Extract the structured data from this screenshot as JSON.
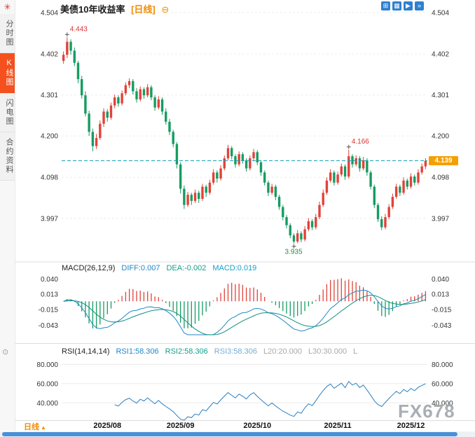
{
  "app": {
    "logo_icon": "✳",
    "indicator_icon": "⊙"
  },
  "sidebar": {
    "tabs": [
      {
        "id": "time-chart",
        "label": "分时图",
        "active": false
      },
      {
        "id": "kline-chart",
        "label": "K线图",
        "active": true
      },
      {
        "id": "lightning-chart",
        "label": "闪电图",
        "active": false
      },
      {
        "id": "contract-info",
        "label": "合约资料",
        "active": false
      }
    ]
  },
  "header": {
    "title": "美债10年收益率",
    "timeframe": "[日线]",
    "zoom_out_icon": "⊖",
    "toolbar_icons": [
      {
        "name": "single-chart-layout-icon",
        "glyph": "⊞"
      },
      {
        "name": "multi-chart-layout-icon",
        "glyph": "▦"
      },
      {
        "name": "play-forward-icon",
        "glyph": "▶"
      },
      {
        "name": "page-forward-icon",
        "glyph": "»"
      }
    ]
  },
  "footer": {
    "timeframe_label": "日线",
    "dropdown_icon": "▲"
  },
  "watermark": "FX678",
  "chart_data": {
    "type": "candlestick",
    "symbol": "美债10年收益率",
    "period": "日线",
    "x_ticks": [
      {
        "label": "2025/08",
        "index": 12
      },
      {
        "label": "2025/09",
        "index": 32
      },
      {
        "label": "2025/10",
        "index": 53
      },
      {
        "label": "2025/11",
        "index": 75
      },
      {
        "label": "2025/12",
        "index": 95
      }
    ],
    "price_pane": {
      "ticks": [
        "4.504",
        "4.402",
        "4.301",
        "4.200",
        "4.098",
        "3.997"
      ],
      "tick_values": [
        4.504,
        4.402,
        4.301,
        4.2,
        4.098,
        3.997
      ],
      "ylim": [
        3.9,
        4.509
      ],
      "last_price": 4.139,
      "last_price_label": "4.139",
      "up_color": "#e0433a",
      "down_color": "#169c62",
      "annotations": [
        {
          "label": "4.443",
          "index": 1,
          "value": 4.443,
          "type": "high",
          "color": "#e03131"
        },
        {
          "label": "4.166",
          "index": 78,
          "value": 4.166,
          "type": "swing-high",
          "color": "#e03131"
        },
        {
          "label": "3.935",
          "index": 63,
          "value": 3.935,
          "type": "low",
          "color": "#2b8a3e"
        }
      ]
    },
    "candles": [
      [
        4.385,
        4.408,
        4.378,
        4.4
      ],
      [
        4.4,
        4.443,
        4.392,
        4.432
      ],
      [
        4.432,
        4.438,
        4.4,
        4.41
      ],
      [
        4.41,
        4.418,
        4.372,
        4.38
      ],
      [
        4.38,
        4.385,
        4.33,
        4.34
      ],
      [
        4.34,
        4.348,
        4.292,
        4.3
      ],
      [
        4.3,
        4.31,
        4.248,
        4.255
      ],
      [
        4.255,
        4.262,
        4.2,
        4.21
      ],
      [
        4.21,
        4.218,
        4.162,
        4.175
      ],
      [
        4.175,
        4.205,
        4.168,
        4.195
      ],
      [
        4.195,
        4.238,
        4.19,
        4.23
      ],
      [
        4.23,
        4.268,
        4.222,
        4.26
      ],
      [
        4.26,
        4.266,
        4.235,
        4.245
      ],
      [
        4.245,
        4.282,
        4.24,
        4.275
      ],
      [
        4.275,
        4.302,
        4.268,
        4.295
      ],
      [
        4.295,
        4.3,
        4.272,
        4.28
      ],
      [
        4.28,
        4.312,
        4.275,
        4.305
      ],
      [
        4.305,
        4.332,
        4.3,
        4.325
      ],
      [
        4.325,
        4.342,
        4.318,
        4.335
      ],
      [
        4.335,
        4.34,
        4.302,
        4.31
      ],
      [
        4.31,
        4.318,
        4.282,
        4.29
      ],
      [
        4.29,
        4.322,
        4.285,
        4.315
      ],
      [
        4.315,
        4.32,
        4.292,
        4.3
      ],
      [
        4.3,
        4.328,
        4.295,
        4.32
      ],
      [
        4.32,
        4.325,
        4.288,
        4.295
      ],
      [
        4.295,
        4.3,
        4.262,
        4.27
      ],
      [
        4.27,
        4.298,
        4.265,
        4.29
      ],
      [
        4.29,
        4.295,
        4.252,
        4.26
      ],
      [
        4.26,
        4.268,
        4.228,
        4.235
      ],
      [
        4.235,
        4.242,
        4.202,
        4.21
      ],
      [
        4.21,
        4.215,
        4.172,
        4.18
      ],
      [
        4.18,
        4.185,
        4.12,
        4.13
      ],
      [
        4.13,
        4.135,
        4.058,
        4.07
      ],
      [
        4.07,
        4.078,
        4.02,
        4.03
      ],
      [
        4.03,
        4.062,
        4.025,
        4.055
      ],
      [
        4.055,
        4.06,
        4.03,
        4.04
      ],
      [
        4.04,
        4.068,
        4.035,
        4.06
      ],
      [
        4.06,
        4.065,
        4.035,
        4.045
      ],
      [
        4.045,
        4.082,
        4.04,
        4.075
      ],
      [
        4.075,
        4.08,
        4.05,
        4.06
      ],
      [
        4.06,
        4.092,
        4.055,
        4.085
      ],
      [
        4.085,
        4.118,
        4.08,
        4.11
      ],
      [
        4.11,
        4.115,
        4.085,
        4.095
      ],
      [
        4.095,
        4.128,
        4.09,
        4.12
      ],
      [
        4.12,
        4.152,
        4.115,
        4.145
      ],
      [
        4.145,
        4.178,
        4.14,
        4.17
      ],
      [
        4.17,
        4.175,
        4.142,
        4.15
      ],
      [
        4.15,
        4.155,
        4.122,
        4.13
      ],
      [
        4.13,
        4.162,
        4.125,
        4.155
      ],
      [
        4.155,
        4.16,
        4.132,
        4.14
      ],
      [
        4.14,
        4.145,
        4.112,
        4.12
      ],
      [
        4.12,
        4.152,
        4.115,
        4.145
      ],
      [
        4.145,
        4.168,
        4.14,
        4.16
      ],
      [
        4.16,
        4.165,
        4.128,
        4.135
      ],
      [
        4.135,
        4.14,
        4.102,
        4.11
      ],
      [
        4.11,
        4.115,
        4.078,
        4.085
      ],
      [
        4.085,
        4.09,
        4.052,
        4.06
      ],
      [
        4.06,
        4.082,
        4.055,
        4.075
      ],
      [
        4.075,
        4.08,
        4.042,
        4.05
      ],
      [
        4.05,
        4.055,
        4.018,
        4.025
      ],
      [
        4.025,
        4.03,
        3.992,
        4.0
      ],
      [
        4.0,
        4.005,
        3.972,
        3.98
      ],
      [
        3.98,
        3.985,
        3.948,
        3.955
      ],
      [
        3.955,
        3.96,
        3.935,
        3.94
      ],
      [
        3.94,
        3.968,
        3.936,
        3.96
      ],
      [
        3.96,
        3.965,
        3.938,
        3.945
      ],
      [
        3.945,
        3.978,
        3.94,
        3.97
      ],
      [
        3.97,
        3.998,
        3.965,
        3.99
      ],
      [
        3.99,
        3.995,
        3.968,
        3.975
      ],
      [
        3.975,
        4.008,
        3.97,
        4.0
      ],
      [
        4.0,
        4.038,
        3.995,
        4.03
      ],
      [
        4.03,
        4.068,
        4.025,
        4.06
      ],
      [
        4.06,
        4.098,
        4.055,
        4.09
      ],
      [
        4.09,
        4.118,
        4.085,
        4.11
      ],
      [
        4.11,
        4.115,
        4.078,
        4.085
      ],
      [
        4.085,
        4.112,
        4.08,
        4.105
      ],
      [
        4.105,
        4.132,
        4.1,
        4.125
      ],
      [
        4.125,
        4.13,
        4.092,
        4.1
      ],
      [
        4.1,
        4.166,
        4.095,
        4.15
      ],
      [
        4.15,
        4.155,
        4.122,
        4.13
      ],
      [
        4.13,
        4.152,
        4.125,
        4.145
      ],
      [
        4.145,
        4.15,
        4.112,
        4.12
      ],
      [
        4.12,
        4.148,
        4.115,
        4.14
      ],
      [
        4.14,
        4.145,
        4.102,
        4.11
      ],
      [
        4.11,
        4.115,
        4.068,
        4.075
      ],
      [
        4.075,
        4.08,
        4.022,
        4.03
      ],
      [
        4.03,
        4.035,
        3.988,
        3.995
      ],
      [
        3.995,
        4.002,
        3.968,
        3.975
      ],
      [
        3.975,
        4.008,
        3.97,
        4.0
      ],
      [
        4.0,
        4.032,
        3.995,
        4.025
      ],
      [
        4.025,
        4.058,
        4.02,
        4.05
      ],
      [
        4.05,
        4.082,
        4.045,
        4.075
      ],
      [
        4.075,
        4.08,
        4.052,
        4.06
      ],
      [
        4.06,
        4.098,
        4.055,
        4.09
      ],
      [
        4.09,
        4.095,
        4.068,
        4.075
      ],
      [
        4.075,
        4.108,
        4.07,
        4.1
      ],
      [
        4.1,
        4.105,
        4.078,
        4.085
      ],
      [
        4.085,
        4.118,
        4.08,
        4.11
      ],
      [
        4.11,
        4.132,
        4.105,
        4.125
      ],
      [
        4.125,
        4.145,
        4.118,
        4.139
      ]
    ],
    "macd_pane": {
      "title": "MACD(26,12,9)",
      "readouts": [
        {
          "label": "DIFF:0.007",
          "color": "#1e88c7"
        },
        {
          "label": "DEA:-0.002",
          "color": "#12a08d"
        },
        {
          "label": "MACD:0.019",
          "color": "#18a0c8"
        }
      ],
      "ticks": [
        "0.040",
        "0.013",
        "-0.015",
        "-0.043"
      ],
      "tick_values": [
        0.04,
        0.013,
        -0.015,
        -0.043
      ],
      "ylim": [
        -0.06,
        0.048
      ],
      "params": {
        "fast": 12,
        "slow": 26,
        "signal": 9
      },
      "diff_color": "#1e88c7",
      "dea_color": "#0e8f7e"
    },
    "rsi_pane": {
      "title": "RSI(14,14,14)",
      "readouts": [
        {
          "label": "RSI1:58.306",
          "color": "#1e88c7"
        },
        {
          "label": "RSI2:58.306",
          "color": "#12a08d"
        },
        {
          "label": "RSI3:58.306",
          "color": "#74add6"
        },
        {
          "label": "L20:20.000",
          "color": "#a8a8a8"
        },
        {
          "label": "L30:30.000",
          "color": "#a8a8a8"
        },
        {
          "label": "L",
          "color": "#a8a8a8"
        }
      ],
      "ticks": [
        "80.000",
        "60.000",
        "40.000"
      ],
      "tick_values": [
        80,
        60,
        40
      ],
      "ylim": [
        22,
        86
      ],
      "period": 14,
      "line_color": "#2b7fc0"
    }
  }
}
